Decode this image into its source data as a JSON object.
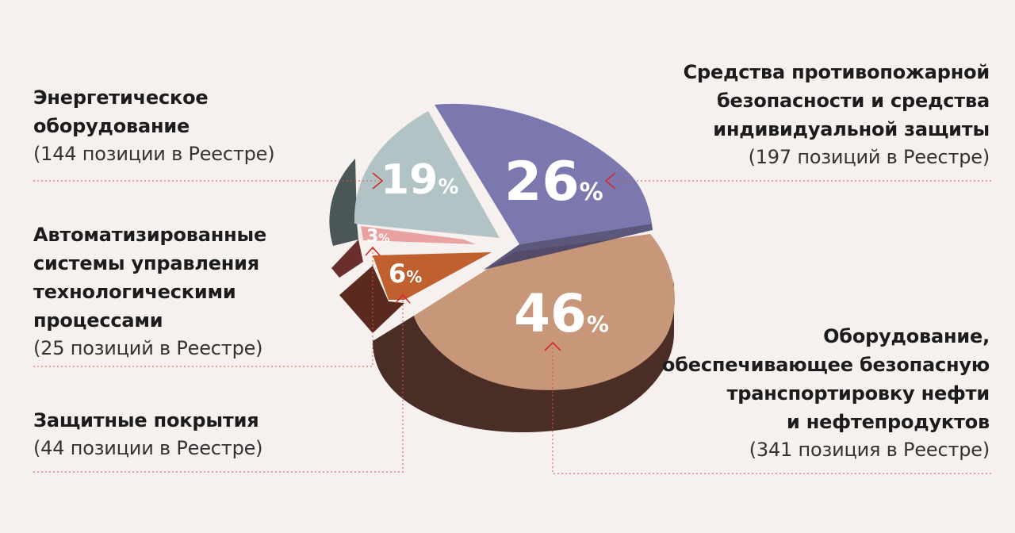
{
  "chart_data": {
    "type": "pie",
    "slices": [
      {
        "label": "Средства противопожарной безопасности и средства индивидуальной защиты",
        "value": 26,
        "display": "26",
        "count_text": "(197 позиций в Реестре)",
        "color": "#7b78b0"
      },
      {
        "label": "Оборудование, обеспечивающее безопасную транспортировку нефти и нефтепродуктов",
        "value": 46,
        "display": "46",
        "count_text": "(341 позиция в Реестре)",
        "color": "#c89678"
      },
      {
        "label": "Защитные покрытия",
        "value": 6,
        "display": "6",
        "count_text": "(44 позиции в Реестре)",
        "color": "#c0602f"
      },
      {
        "label": "Автоматизированные системы управления технологическими процессами",
        "value": 3,
        "display": "3",
        "count_text": "(25 позиций в Реестре)",
        "color": "#e9a2a2"
      },
      {
        "label": "Энергетическое оборудование",
        "value": 19,
        "display": "19",
        "count_text": "(144 позиции в Реестре)",
        "color": "#b2c3c6"
      }
    ],
    "percent_sign": "%"
  },
  "labels": {
    "energy": {
      "lines": [
        "Энергетическое",
        "оборудование"
      ],
      "sub": "(144 позиции в Реестре)"
    },
    "asu": {
      "lines": [
        "Автоматизированные",
        "системы управления",
        "технологическими",
        "процессами"
      ],
      "sub": "(25 позиций в Реестре)"
    },
    "coatings": {
      "lines": [
        "Защитные покрытия"
      ],
      "sub": "(44 позиции в Реестре)"
    },
    "fire": {
      "lines": [
        "Средства противопожарной",
        "безопасности и средства",
        "индивидуальной защиты"
      ],
      "sub": "(197 позиций в Реестре)"
    },
    "oil": {
      "lines": [
        "Оборудование,",
        "обеспечивающее безопасную",
        "транспортировку нефти",
        "и нефтепродуктов"
      ],
      "sub": "(341 позиция в Реестре)"
    }
  },
  "colors": {
    "background": "#f6f1ee",
    "leader": "#d9534f",
    "marker": "#d22b2b"
  }
}
